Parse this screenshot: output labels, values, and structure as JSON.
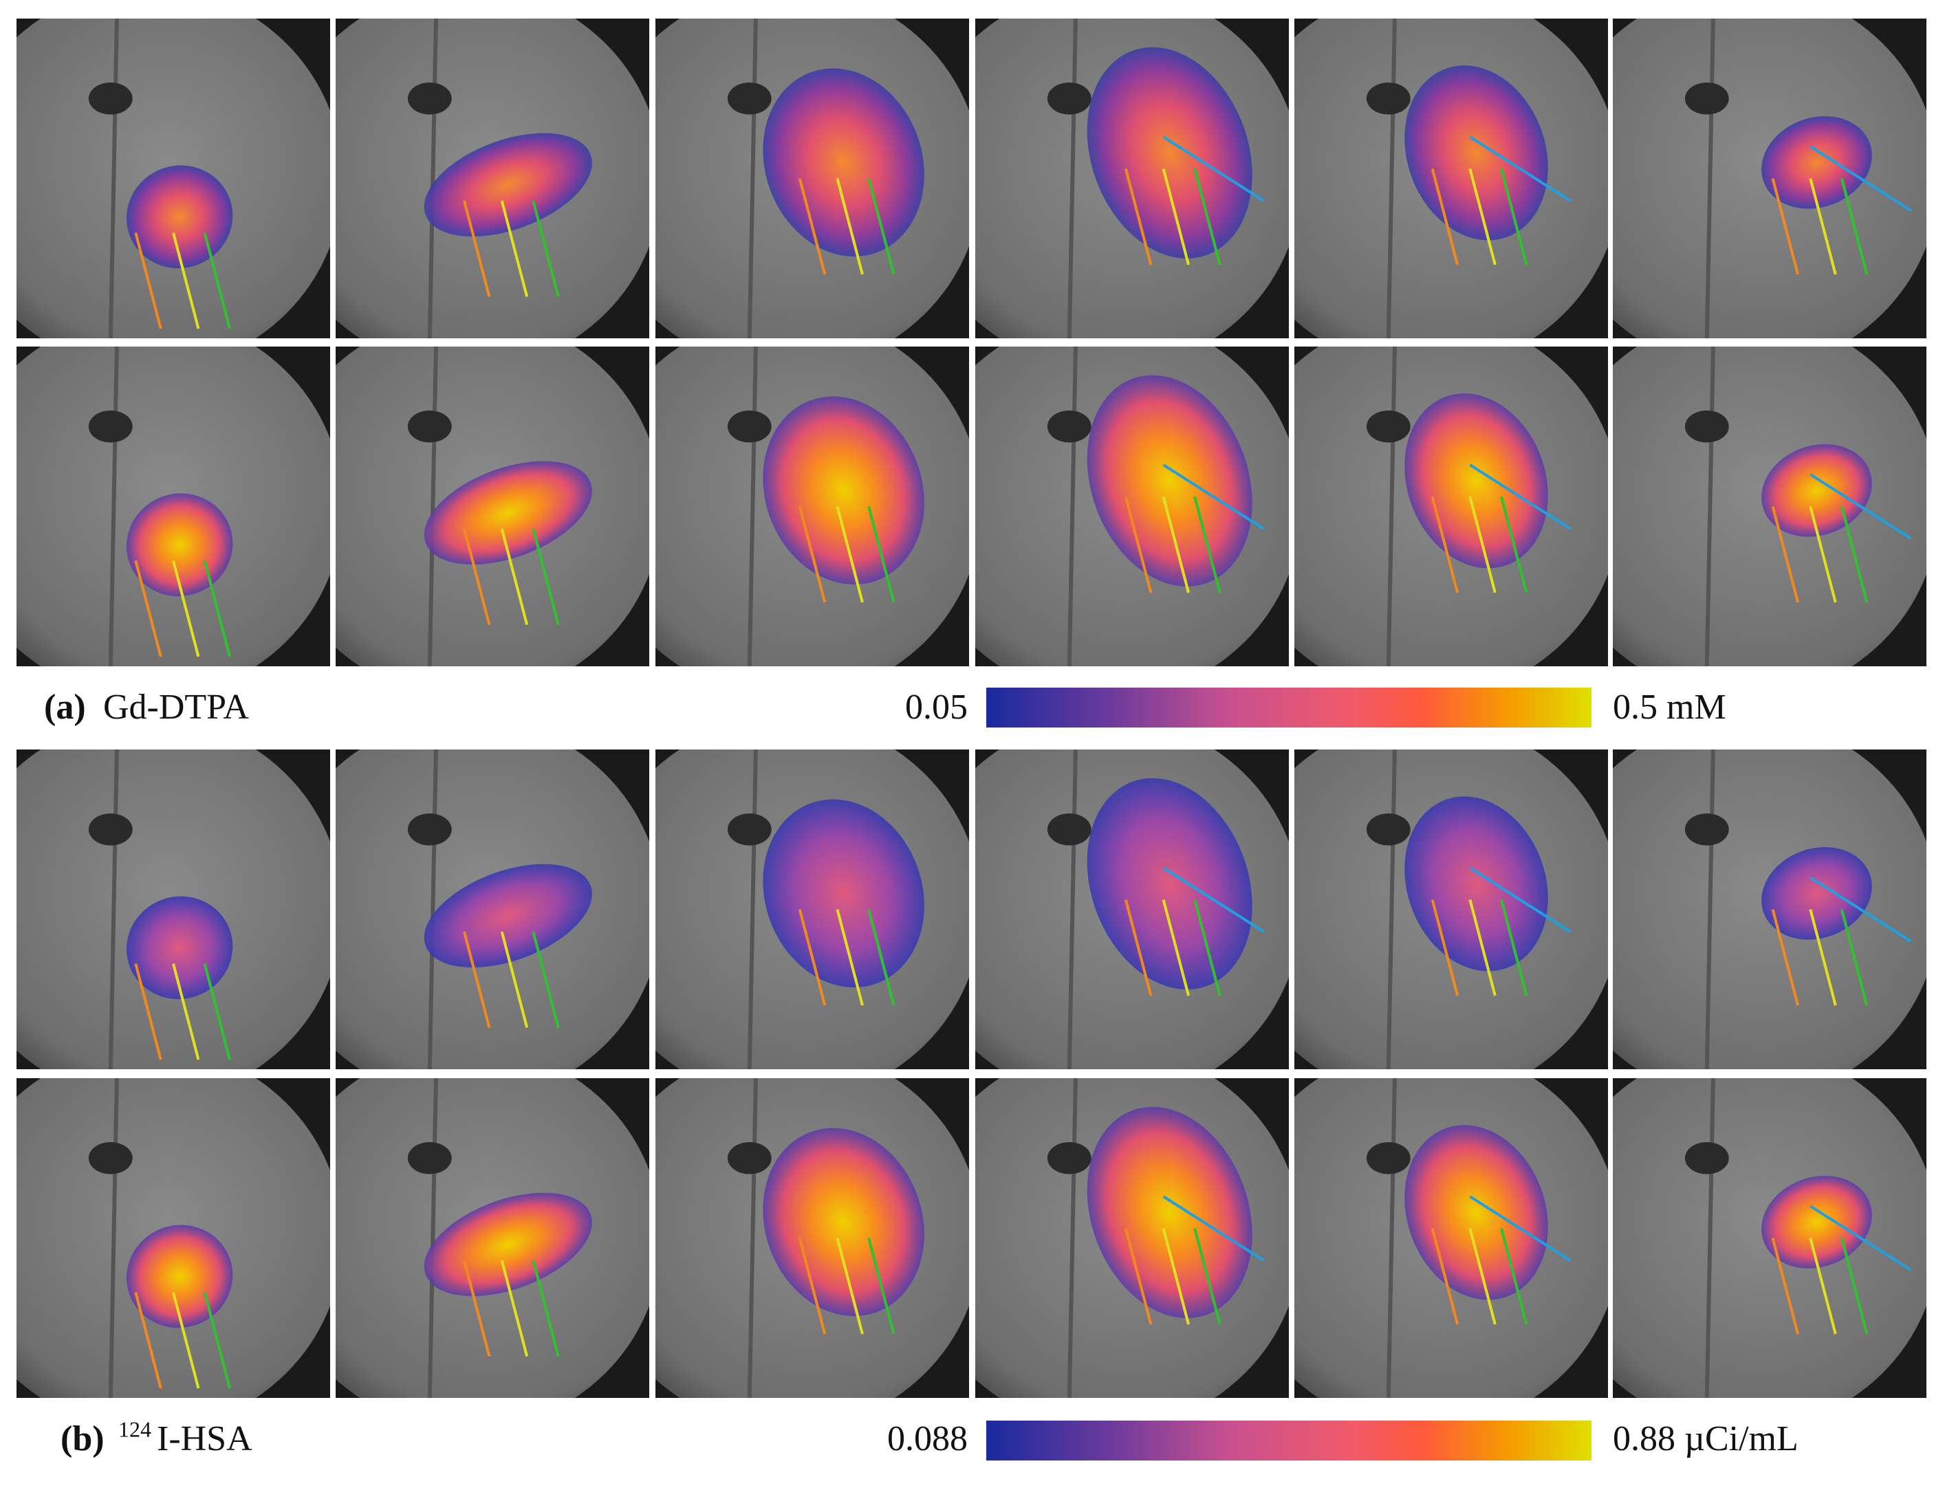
{
  "panels": [
    {
      "label": "(a)",
      "name": "Gd-DTPA",
      "colorbar": {
        "min": "0.05",
        "max": "0.5 mM"
      }
    },
    {
      "label": "(b)",
      "superscript": "124",
      "name": "I-HSA",
      "colorbar": {
        "min": "0.088",
        "max": "0.88 µCi/mL"
      }
    }
  ]
}
